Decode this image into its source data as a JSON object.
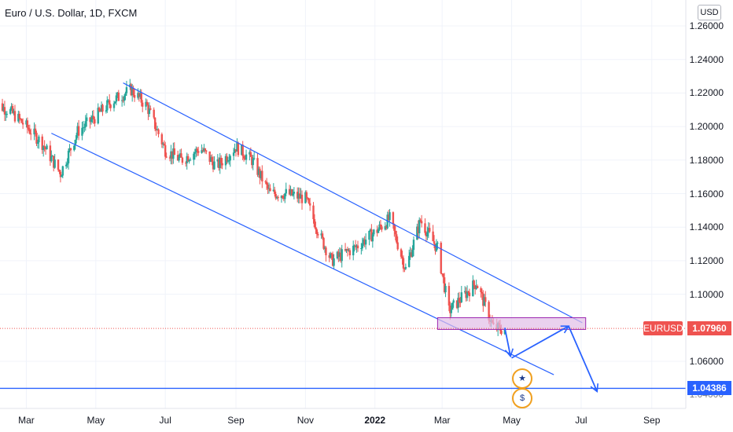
{
  "header": {
    "title": "Euro / U.S. Dollar, 1D, FXCM",
    "currency_label": "USD"
  },
  "tags": {
    "symbol": "EURUSD",
    "last_price": "1.07960",
    "line_price": "1.04386",
    "hidden_price": "1.04000"
  },
  "colors": {
    "up": "#26a69a",
    "down": "#ef5350",
    "trendline": "#2962ff",
    "zone_fill": "#e1bee7",
    "zone_border": "#9c27b0",
    "price_tag": "#ef5350",
    "line_tag": "#2962ff"
  },
  "icons": [
    "eu-flag-icon",
    "us-flag-icon"
  ],
  "chart_data": {
    "type": "candlestick",
    "title": "Euro / U.S. Dollar, 1D, FXCM",
    "y_ticks": [
      "1.26000",
      "1.24000",
      "1.22000",
      "1.20000",
      "1.18000",
      "1.16000",
      "1.14000",
      "1.12000",
      "1.10000",
      "1.06000"
    ],
    "x_ticks": [
      "Mar",
      "May",
      "Jul",
      "Sep",
      "Nov",
      "2022",
      "Mar",
      "May",
      "Jul",
      "Sep"
    ],
    "ylim": [
      1.037,
      1.265
    ],
    "grid": true,
    "series_close_path": [
      [
        "2021-02-01",
        1.214
      ],
      [
        "2021-02-15",
        1.209
      ],
      [
        "2021-03-01",
        1.2
      ],
      [
        "2021-03-15",
        1.19
      ],
      [
        "2021-03-31",
        1.172
      ],
      [
        "2021-04-15",
        1.197
      ],
      [
        "2021-05-01",
        1.206
      ],
      [
        "2021-05-15",
        1.215
      ],
      [
        "2021-06-01",
        1.222
      ],
      [
        "2021-06-15",
        1.212
      ],
      [
        "2021-07-01",
        1.186
      ],
      [
        "2021-07-15",
        1.18
      ],
      [
        "2021-08-01",
        1.187
      ],
      [
        "2021-08-15",
        1.176
      ],
      [
        "2021-09-01",
        1.188
      ],
      [
        "2021-09-15",
        1.18
      ],
      [
        "2021-10-01",
        1.16
      ],
      [
        "2021-10-15",
        1.16
      ],
      [
        "2021-11-01",
        1.157
      ],
      [
        "2021-11-15",
        1.133
      ],
      [
        "2021-11-24",
        1.12
      ],
      [
        "2021-12-15",
        1.128
      ],
      [
        "2022-01-01",
        1.137
      ],
      [
        "2022-01-14",
        1.145
      ],
      [
        "2022-01-28",
        1.115
      ],
      [
        "2022-02-10",
        1.144
      ],
      [
        "2022-02-25",
        1.127
      ],
      [
        "2022-03-07",
        1.09
      ],
      [
        "2022-03-31",
        1.107
      ],
      [
        "2022-04-15",
        1.08
      ],
      [
        "2022-04-25",
        1.079
      ]
    ],
    "trend_channel": {
      "upper": [
        [
          "2021-05-25",
          1.226
        ],
        [
          "2022-07-02",
          1.083
        ]
      ],
      "lower": [
        [
          "2021-03-23",
          1.196
        ],
        [
          "2022-06-07",
          1.052
        ]
      ]
    },
    "support_zone": {
      "x": [
        "2022-02-25",
        "2022-07-05"
      ],
      "y": [
        1.079,
        1.086
      ]
    },
    "projection_arrows": [
      [
        [
          "2022-04-25",
          1.08
        ],
        [
          "2022-04-30",
          1.063
        ]
      ],
      [
        [
          "2022-05-01",
          1.062
        ],
        [
          "2022-06-20",
          1.081
        ]
      ],
      [
        [
          "2022-06-20",
          1.081
        ],
        [
          "2022-07-15",
          1.042
        ]
      ]
    ],
    "horizontal_line": 1.04386,
    "current_price": 1.0796
  }
}
